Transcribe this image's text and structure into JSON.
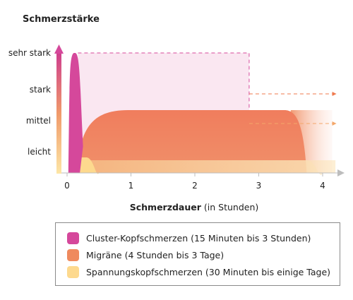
{
  "chart_data": {
    "type": "area",
    "title": "Schmerzstärke",
    "xlabel_bold": "Schmerzdauer",
    "xlabel_rest": " (in Stunden)",
    "x_ticks": [
      "0",
      "1",
      "2",
      "3",
      "4"
    ],
    "xlim": [
      0,
      4.25
    ],
    "y_levels": [
      "leicht",
      "mittel",
      "stark",
      "sehr stark"
    ],
    "ylim": [
      0,
      4.3
    ],
    "series": [
      {
        "name": "Spannungskopfschmerzen (30 Minuten bis einige Tage)",
        "color": "#fdd98e",
        "level": 1,
        "start": 0.05,
        "plateau_start": 0.22,
        "plateau_end": 0.42,
        "end": 0.5,
        "continues": true
      },
      {
        "name": "Migräne (4 Stunden bis 3 Tage)",
        "color": "#ef8a5e",
        "level": 2,
        "start": 0.15,
        "plateau_start": 0.95,
        "plateau_end": 3.5,
        "end": 3.75,
        "continues": true
      },
      {
        "name": "Cluster-Kopfschmerzen (15 Minuten bis 3 Stunden)",
        "color": "#d5489b",
        "level": 4,
        "start": 0.02,
        "plateau_start": 0.07,
        "plateau_end": 0.17,
        "end": 0.25,
        "continues": true
      }
    ],
    "grid": false,
    "legend_position": "bottom"
  }
}
